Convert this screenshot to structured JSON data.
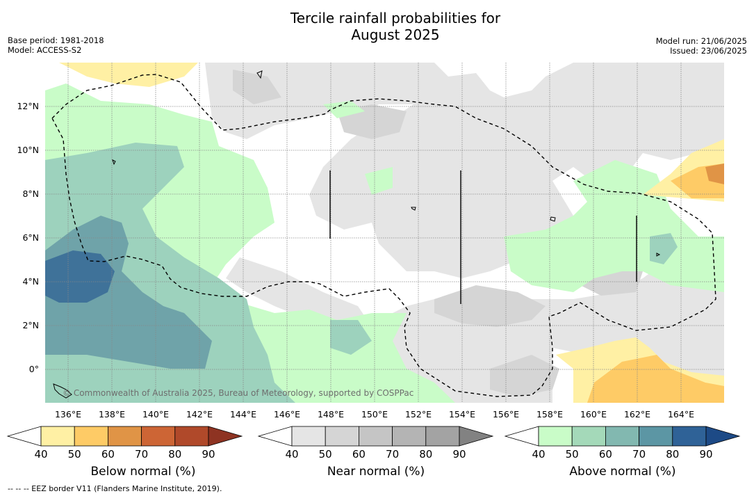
{
  "title_line1": "Tercile rainfall probabilities for",
  "title_line2": "August 2025",
  "meta_left": {
    "base_period": "Base period: 1981-2018",
    "model": "Model: ACCESS-S2"
  },
  "meta_right": {
    "model_run": "Model run: 21/06/2025",
    "issued": "Issued: 23/06/2025"
  },
  "copyright": "© Commonwealth of Australia 2025, Bureau of Meteorology, supported by COSPPac",
  "footnote": "-- -- -- EEZ border V11 (Flanders Marine Institute, 2019).",
  "x_ticks": [
    "136°E",
    "138°E",
    "140°E",
    "142°E",
    "144°E",
    "146°E",
    "148°E",
    "150°E",
    "152°E",
    "154°E",
    "156°E",
    "158°E",
    "160°E",
    "162°E",
    "164°E"
  ],
  "y_ticks": [
    "12°N",
    "10°N",
    "8°N",
    "6°N",
    "4°N",
    "2°N",
    "0°"
  ],
  "colorbars": [
    {
      "title": "Below normal (%)",
      "labels": [
        "40",
        "50",
        "60",
        "70",
        "80",
        "90"
      ],
      "colors": [
        "#ffffff",
        "#fff0a4",
        "#fecb66",
        "#e09446",
        "#cd6535",
        "#b0492a",
        "#8e3322"
      ]
    },
    {
      "title": "Near normal (%)",
      "labels": [
        "40",
        "50",
        "60",
        "70",
        "80",
        "90"
      ],
      "colors": [
        "#ffffff",
        "#e5e5e5",
        "#d5d5d5",
        "#c5c5c5",
        "#b4b4b4",
        "#a3a3a3",
        "#828282"
      ]
    },
    {
      "title": "Above normal (%)",
      "labels": [
        "40",
        "50",
        "60",
        "70",
        "80",
        "90"
      ],
      "colors": [
        "#ffffff",
        "#c9fcc8",
        "#a4d9b9",
        "#82b8b0",
        "#5c96a4",
        "#2f6297",
        "#1d4a86"
      ]
    }
  ],
  "colors": {
    "near_50": "#e5e5e5",
    "near_60": "#d5d5d5",
    "above_50": "#c9fcc8",
    "above_60": "#9dd2bd",
    "above_70": "#6fa3a9",
    "above_80": "#3f7299",
    "below_50": "#fff0a4",
    "below_60": "#fecb66",
    "below_70": "#e09446",
    "grid": "#888888"
  }
}
